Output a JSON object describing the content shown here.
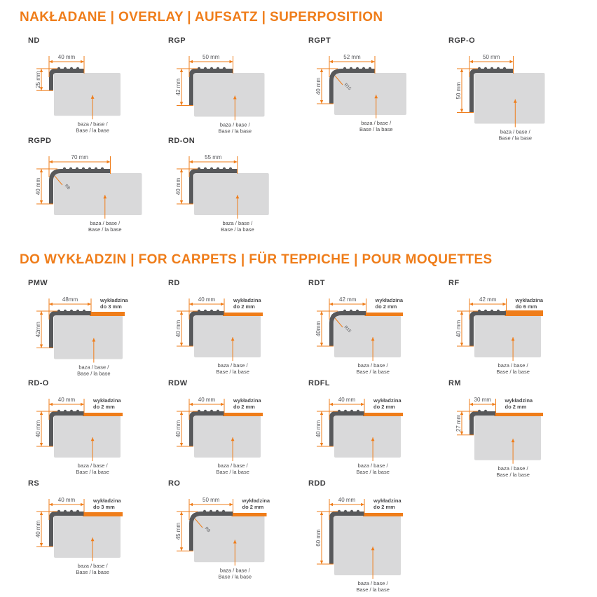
{
  "page": {
    "accent": "#EF7D1A",
    "base_fill": "#D9D9DA",
    "profile_fill": "#57585A",
    "title_color": "#EF7D1A",
    "name_color": "#3C3C3E",
    "dim_text_color": "#55565A",
    "annotation_color": "#4A4A4C"
  },
  "sections": [
    {
      "title": "NAKŁADANE | OVERLAY | AUFSATZ | SUPERPOSITION",
      "rows": [
        [
          {
            "name": "ND",
            "width_label": "40 mm",
            "height_label": "25 mm",
            "w_mm": 40,
            "h_mm": 25,
            "base_label_1": "baza / base /",
            "base_label_2": "Base / la base"
          },
          {
            "name": "RGP",
            "width_label": "50 mm",
            "height_label": "42 mm",
            "w_mm": 50,
            "h_mm": 42,
            "base_label_1": "baza / base /",
            "base_label_2": "Base / la base"
          },
          {
            "name": "RGPT",
            "width_label": "52 mm",
            "height_label": "40 mm",
            "w_mm": 52,
            "h_mm": 40,
            "radius_label": "R15",
            "curved": true,
            "base_label_1": "baza / base /",
            "base_label_2": "Base / la base"
          },
          {
            "name": "RGP-O",
            "width_label": "50 mm",
            "height_label": "50 mm",
            "w_mm": 50,
            "h_mm": 50,
            "base_label_1": "baza / base /",
            "base_label_2": "Base / la base"
          }
        ],
        [
          {
            "name": "RGPD",
            "width_label": "70 mm",
            "height_label": "40 mm",
            "w_mm": 70,
            "h_mm": 40,
            "radius_label": "R8",
            "curved": true,
            "base_label_1": "baza / base /",
            "base_label_2": "Base / la base"
          },
          {
            "name": "RD-ON",
            "width_label": "55 mm",
            "height_label": "40 mm",
            "w_mm": 55,
            "h_mm": 40,
            "base_label_1": "baza / base /",
            "base_label_2": "Base / la base"
          }
        ]
      ]
    },
    {
      "title": "DO WYKŁADZIN | FOR CARPETS | FÜR TEPPICHE | POUR MOQUETTES",
      "rows": [
        [
          {
            "name": "PMW",
            "width_label": "48mm",
            "height_label": "42mm",
            "w_mm": 48,
            "h_mm": 42,
            "carpet_label_1": "wykładzina",
            "carpet_label_2": "do 3 mm",
            "base_label_1": "baza / base /",
            "base_label_2": "Base / la base"
          },
          {
            "name": "RD",
            "width_label": "40 mm",
            "height_label": "40 mm",
            "w_mm": 40,
            "h_mm": 40,
            "carpet_label_1": "wykładzina",
            "carpet_label_2": "do 2 mm",
            "base_label_1": "baza / base /",
            "base_label_2": "Base / la base"
          },
          {
            "name": "RDT",
            "width_label": "42 mm",
            "height_label": "40mm",
            "w_mm": 42,
            "h_mm": 40,
            "radius_label": "R15",
            "curved": true,
            "carpet_label_1": "wykładzina",
            "carpet_label_2": "do 2 mm",
            "base_label_1": "baza / base /",
            "base_label_2": "Base / la base"
          },
          {
            "name": "RF",
            "width_label": "42 mm",
            "height_label": "40 mm",
            "w_mm": 42,
            "h_mm": 40,
            "carpet_label_1": "wykładzina",
            "carpet_label_2": "do 6 mm",
            "base_label_1": "baza / base /",
            "base_label_2": "Base / la base"
          }
        ],
        [
          {
            "name": "RD-O",
            "width_label": "40 mm",
            "height_label": "40 mm",
            "w_mm": 40,
            "h_mm": 40,
            "carpet_label_1": "wykładzina",
            "carpet_label_2": "do 2 mm",
            "base_label_1": "baza / base /",
            "base_label_2": "Base / la base"
          },
          {
            "name": "RDW",
            "width_label": "40 mm",
            "height_label": "40 mm",
            "w_mm": 40,
            "h_mm": 40,
            "carpet_label_1": "wykładzina",
            "carpet_label_2": "do 2 mm",
            "base_label_1": "baza / base /",
            "base_label_2": "Base / la base"
          },
          {
            "name": "RDFL",
            "width_label": "40 mm",
            "height_label": "40 mm",
            "w_mm": 40,
            "h_mm": 40,
            "carpet_label_1": "wykładzina",
            "carpet_label_2": "do 2 mm",
            "base_label_1": "baza / base /",
            "base_label_2": "Base / la base"
          },
          {
            "name": "RM",
            "width_label": "30 mm",
            "height_label": "27 mm",
            "w_mm": 30,
            "h_mm": 27,
            "carpet_label_1": "wykładzina",
            "carpet_label_2": "do 2 mm",
            "base_label_1": "baza / base /",
            "base_label_2": "Base / la base"
          }
        ],
        [
          {
            "name": "RS",
            "width_label": "40 mm",
            "height_label": "40 mm",
            "w_mm": 40,
            "h_mm": 40,
            "carpet_label_1": "wykładzina",
            "carpet_label_2": "do 3 mm",
            "base_label_1": "baza / base /",
            "base_label_2": "Base / la base"
          },
          {
            "name": "RO",
            "width_label": "50 mm",
            "height_label": "45 mm",
            "w_mm": 50,
            "h_mm": 45,
            "radius_label": "R8",
            "curved": true,
            "carpet_label_1": "wykładzina",
            "carpet_label_2": "do 2 mm",
            "base_label_1": "baza / base /",
            "base_label_2": "Base / la base"
          },
          {
            "name": "RDD",
            "width_label": "40 mm",
            "height_label": "60 mm",
            "w_mm": 40,
            "h_mm": 60,
            "carpet_label_1": "wykładzina",
            "carpet_label_2": "do 2 mm",
            "base_label_1": "baza / base /",
            "base_label_2": "Base / la base"
          }
        ]
      ]
    }
  ]
}
